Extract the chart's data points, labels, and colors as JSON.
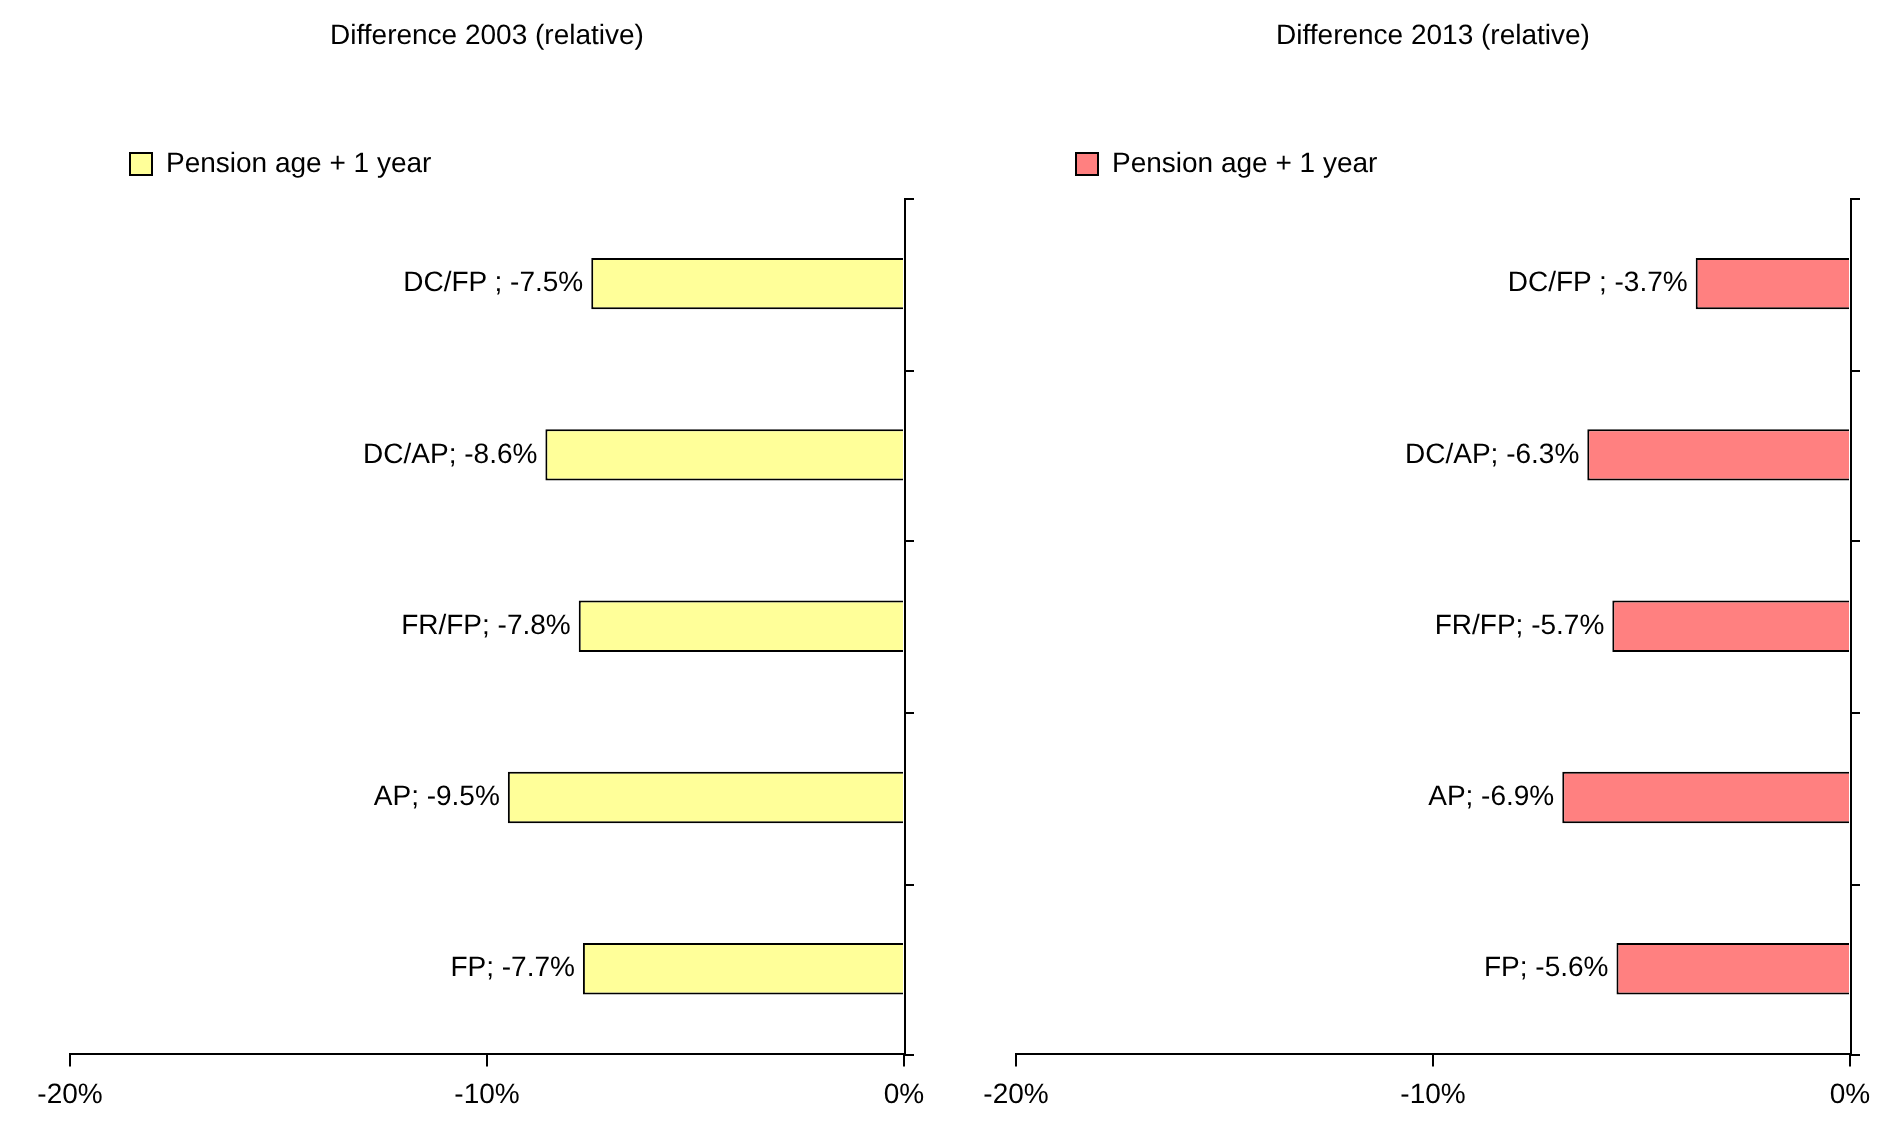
{
  "chart_data": [
    {
      "type": "bar",
      "orientation": "horizontal",
      "title": "Difference 2003 (relative)",
      "categories": [
        null,
        null,
        null,
        null,
        null
      ],
      "series": [
        {
          "name": "Pension age + 1 year",
          "color": "#ffff99",
          "values": [
            -7.5,
            -8.6,
            -7.8,
            -9.5,
            -7.7
          ],
          "value_labels": [
            "DC/FP ; -7.5%",
            "DC/AP; -8.6%",
            "FR/FP; -7.8%",
            "AP; -9.5%",
            "FP; -7.7%"
          ]
        }
      ],
      "xlim": [
        -20,
        0
      ],
      "xticks": [
        {
          "value": -20,
          "label": "-20%"
        },
        {
          "value": -10,
          "label": "-10%"
        },
        {
          "value": 0,
          "label": "0%"
        }
      ],
      "grid": false,
      "legend": "top left"
    },
    {
      "type": "bar",
      "orientation": "horizontal",
      "title": "Difference 2013 (relative)",
      "categories": [
        null,
        null,
        null,
        null,
        null
      ],
      "series": [
        {
          "name": "Pension age + 1 year",
          "color": "#ff8080",
          "values": [
            -3.7,
            -6.3,
            -5.7,
            -6.9,
            -5.6
          ],
          "value_labels": [
            "DC/FP ; -3.7%",
            "DC/AP; -6.3%",
            "FR/FP; -5.7%",
            "AP; -6.9%",
            "FP; -5.6%"
          ]
        }
      ],
      "xlim": [
        -20,
        0
      ],
      "xticks": [
        {
          "value": -20,
          "label": "-20%"
        },
        {
          "value": -10,
          "label": "-10%"
        },
        {
          "value": 0,
          "label": "0%"
        }
      ],
      "grid": false,
      "legend": "top left"
    }
  ]
}
